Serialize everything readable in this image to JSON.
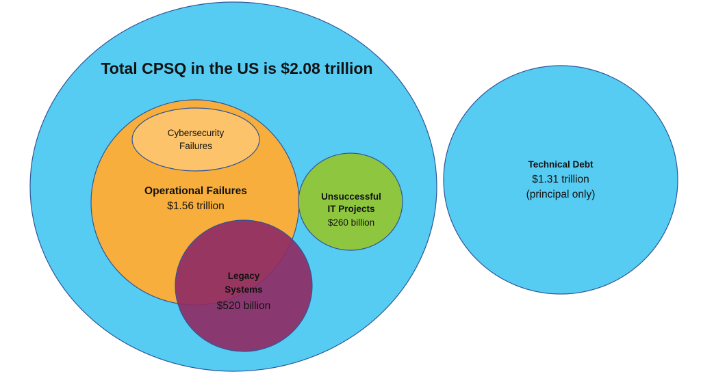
{
  "title": "Total CPSQ in the US is $2.08 trillion",
  "colors": {
    "total": "#56CCF2",
    "operational": "#F8AE3C",
    "cybersecurity": "#FCC36A",
    "legacy": "#8E2C65",
    "unsuccessful": "#8EC63F",
    "technical_debt": "#56CCF2",
    "outline": "#2F5597"
  },
  "cybersecurity": {
    "line1": "Cybersecurity",
    "line2": "Failures"
  },
  "operational": {
    "name": "Operational Failures",
    "value": "$1.56 trillion"
  },
  "unsuccessful": {
    "line1": "Unsuccessful",
    "line2": "IT Projects",
    "value": "$260 billion"
  },
  "legacy": {
    "line1": "Legacy",
    "line2": "Systems",
    "value": "$520 billion"
  },
  "technical_debt": {
    "name": "Technical Debt",
    "value": "$1.31 trillion",
    "note": "(principal only)"
  }
}
